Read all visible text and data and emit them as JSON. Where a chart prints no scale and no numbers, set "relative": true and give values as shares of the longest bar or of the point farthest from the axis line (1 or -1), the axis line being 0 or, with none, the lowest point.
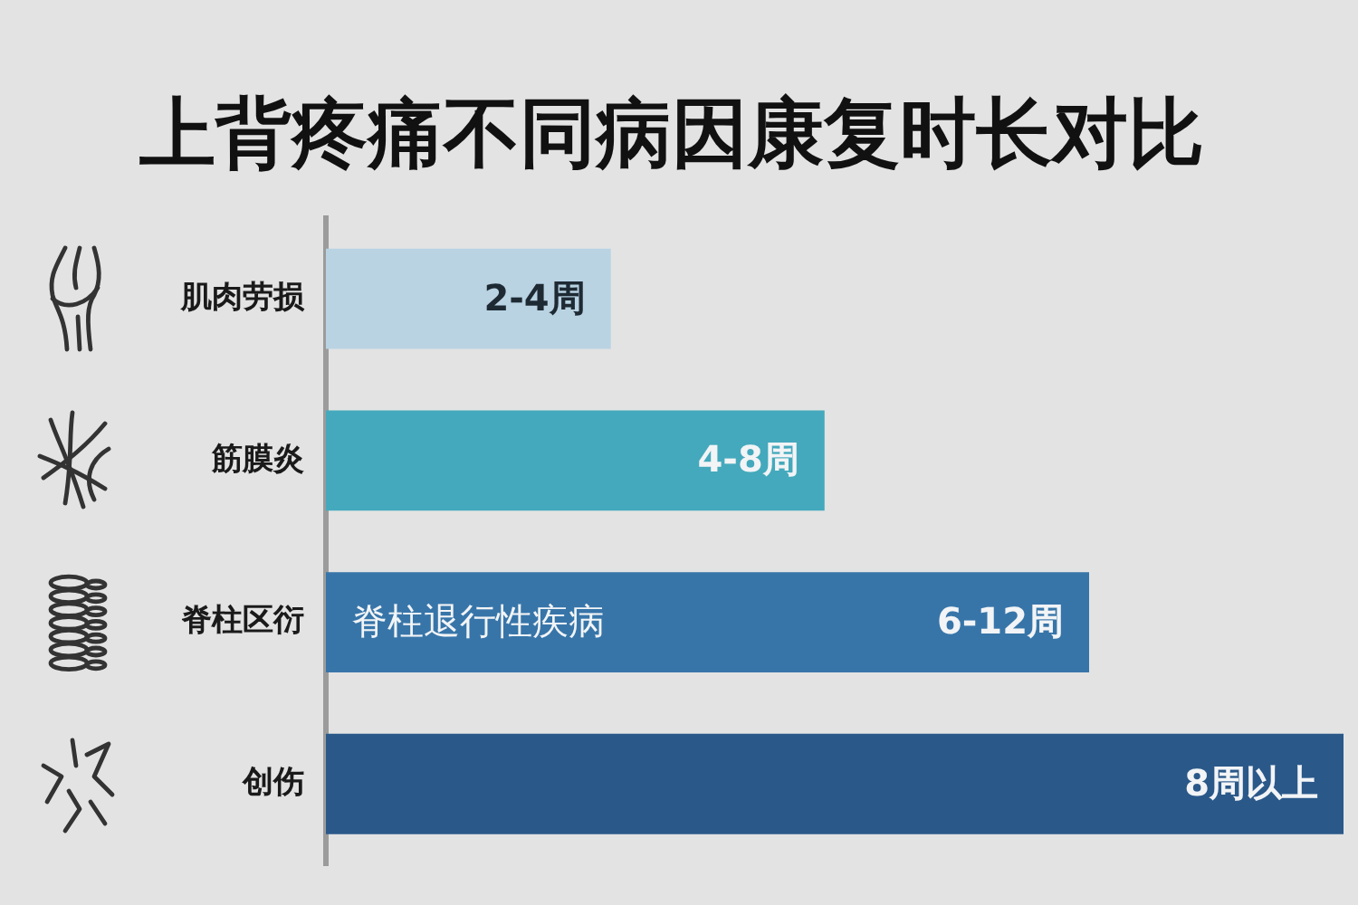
{
  "chart_data": {
    "type": "bar",
    "orientation": "horizontal",
    "title": "上背疼痛不同病因康复时长对比",
    "categories": [
      "肌肉劳损",
      "筋膜炎",
      "脊柱区衍",
      "创伤"
    ],
    "relative": true,
    "values": [
      0.28,
      0.49,
      0.75,
      1
    ],
    "colors": [
      "#b9d3e3",
      "#44a9bc",
      "#3775a9",
      "#2a5889"
    ],
    "annotations": [
      {
        "text": "2-4周",
        "x": 0.28,
        "y": "肌肉劳损"
      },
      {
        "text": "4-8周",
        "x": 0.49,
        "y": "筋膜炎"
      },
      {
        "text": "6-12周",
        "x": 0.75,
        "y": "脊柱区衍"
      },
      {
        "text": "8周以上",
        "x": 1,
        "y": "创伤"
      },
      "脊柱退行性疾病"
    ]
  }
}
